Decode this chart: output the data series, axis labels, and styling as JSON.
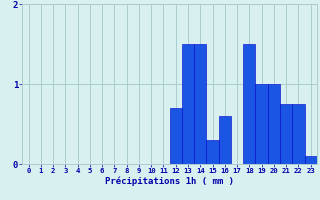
{
  "hours": [
    0,
    1,
    2,
    3,
    4,
    5,
    6,
    7,
    8,
    9,
    10,
    11,
    12,
    13,
    14,
    15,
    16,
    17,
    18,
    19,
    20,
    21,
    22,
    23
  ],
  "values": [
    0,
    0,
    0,
    0,
    0,
    0,
    0,
    0,
    0,
    0,
    0,
    0,
    0.7,
    1.5,
    1.5,
    0.3,
    0.6,
    0,
    1.5,
    1.0,
    1.0,
    0.75,
    0.75,
    0.1
  ],
  "bar_color": "#1a55e3",
  "bar_edge_color": "#0000cc",
  "background_color": "#d8f0f0",
  "grid_color": "#aacccc",
  "tick_color": "#0000aa",
  "xlabel": "Précipitations 1h ( mm )",
  "ylim": [
    0,
    2
  ],
  "yticks": [
    0,
    1,
    2
  ]
}
